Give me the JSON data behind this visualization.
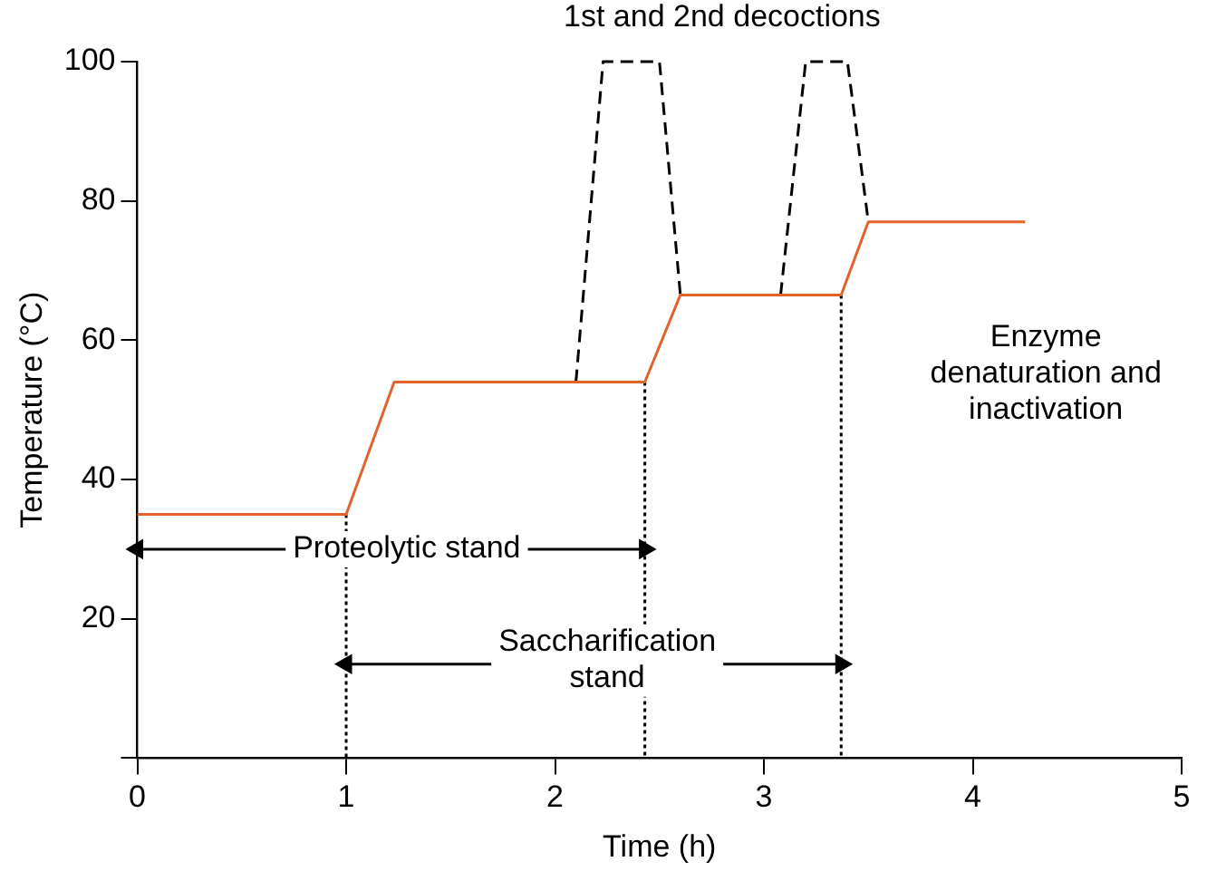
{
  "chart_data": {
    "type": "line",
    "xlabel": "Time (h)",
    "ylabel": "Temperature (°C)",
    "xlim": [
      0,
      5
    ],
    "xticks": [
      0,
      1,
      2,
      3,
      4,
      5
    ],
    "ylim": [
      0,
      100
    ],
    "yticks": [
      {
        "value": 0,
        "label": null
      },
      20,
      40,
      60,
      80,
      100
    ],
    "grid": false,
    "legend": false,
    "series": [
      {
        "color": "#e2622b",
        "line_style": "solid",
        "marker": "none",
        "x": [
          0,
          1,
          1.23,
          2.43,
          2.6,
          3.37,
          3.5,
          4.25
        ],
        "values": [
          35,
          35,
          54,
          54,
          66.5,
          66.5,
          77,
          77
        ]
      },
      {
        "color": "#000000",
        "line_style": "dashed",
        "marker": "none",
        "x": [
          2.1,
          2.23,
          2.5,
          2.6
        ],
        "values": [
          54,
          100,
          100,
          66.5
        ]
      },
      {
        "color": "#000000",
        "line_style": "dashed",
        "marker": "none",
        "x": [
          3.08,
          3.2,
          3.4,
          3.5
        ],
        "values": [
          66.5,
          100,
          100,
          77
        ]
      },
      {
        "color": "#000000",
        "line_style": "dotted",
        "marker": "none",
        "x": [
          1,
          1
        ],
        "values": [
          35,
          0
        ]
      },
      {
        "color": "#000000",
        "line_style": "dotted",
        "marker": "none",
        "x": [
          2.43,
          2.43
        ],
        "values": [
          54,
          0
        ]
      },
      {
        "color": "#000000",
        "line_style": "dotted",
        "marker": "none",
        "x": [
          3.37,
          3.37
        ],
        "values": [
          66.5,
          0
        ]
      },
      {
        "color": "#000000",
        "line_style": "solid",
        "marker": "triangle",
        "x": [
          0,
          2.43
        ],
        "values": [
          30,
          30
        ]
      },
      {
        "color": "#000000",
        "line_style": "solid",
        "marker": "triangle",
        "x": [
          1,
          3.37
        ],
        "values": [
          13.5,
          13.5
        ]
      }
    ],
    "annotations": [
      "1st and 2nd decoctions",
      {
        "text": "Proteolytic stand",
        "x": 1.29,
        "y": 30
      },
      {
        "text": "Saccharification\nstand",
        "x": 2.25,
        "y": 14
      },
      "Enzyme\ndenaturation and\ninactivation"
    ]
  }
}
